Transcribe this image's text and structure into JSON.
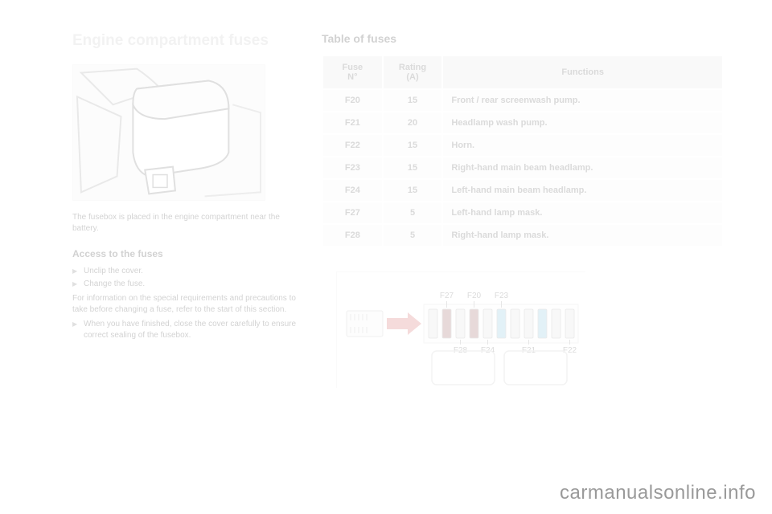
{
  "left": {
    "heading": "Engine compartment fuses",
    "caption": "The fusebox is placed in the engine compartment near the battery.",
    "access_heading": "Access to the fuses",
    "bullets": [
      "Unclip the cover.",
      "Change the fuse."
    ],
    "para1": "For information on the special requirements and precautions to take before changing a fuse, refer to the start of this section.",
    "bullets2": [
      "When you have finished, close the cover carefully to ensure correct sealing of the fusebox."
    ]
  },
  "right": {
    "heading": "Table of fuses",
    "table": {
      "cols": {
        "n_top": "Fuse",
        "n_bot": "N°",
        "r_top": "Rating",
        "r_bot": "(A)",
        "func": "Functions"
      },
      "rows": [
        {
          "n": "F20",
          "r": "15",
          "f": "Front / rear screenwash pump."
        },
        {
          "n": "F21",
          "r": "20",
          "f": "Headlamp wash pump."
        },
        {
          "n": "F22",
          "r": "15",
          "f": "Horn."
        },
        {
          "n": "F23",
          "r": "15",
          "f": "Right-hand main beam headlamp."
        },
        {
          "n": "F24",
          "r": "15",
          "f": "Left-hand main beam headlamp."
        },
        {
          "n": "F27",
          "r": "5",
          "f": "Left-hand lamp mask."
        },
        {
          "n": "F28",
          "r": "5",
          "f": "Right-hand lamp mask."
        }
      ]
    },
    "diagram": {
      "top_labels": [
        "F27",
        "F20",
        "F23"
      ],
      "bot_labels": [
        "F28",
        "F24",
        "F21",
        "F22"
      ],
      "fuse_colors": [
        "#d9d9d9",
        "#7a2e2e",
        "#d9d9d9",
        "#7a2e2e",
        "#d9d9d9",
        "#5fb0cf",
        "#d9d9d9",
        "#d9d9d9",
        "#5fb0cf",
        "#d9d9d9",
        "#d9d9d9"
      ]
    }
  },
  "watermark": "carmanualsonline.info"
}
